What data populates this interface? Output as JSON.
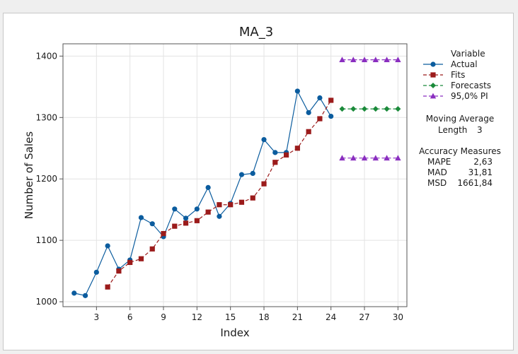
{
  "chart_data": {
    "type": "line",
    "title": "MA_3",
    "xlabel": "Index",
    "ylabel": "Number of Sales",
    "xlim": [
      0,
      30.8
    ],
    "ylim": [
      992,
      1420
    ],
    "xticks": [
      3,
      6,
      9,
      12,
      15,
      18,
      21,
      24,
      27,
      30
    ],
    "yticks": [
      1000,
      1100,
      1200,
      1300,
      1400
    ],
    "grid": true,
    "legend_position": "right",
    "legend_title": "Variable",
    "series": [
      {
        "name": "Actual",
        "color": "#0b5c9e",
        "marker": "circle",
        "line": "solid",
        "x": [
          1,
          2,
          3,
          4,
          5,
          6,
          7,
          8,
          9,
          10,
          11,
          12,
          13,
          14,
          15,
          16,
          17,
          18,
          19,
          20,
          21,
          22,
          23,
          24
        ],
        "y": [
          1014,
          1010,
          1048,
          1091,
          1053,
          1068,
          1137,
          1127,
          1106,
          1151,
          1136,
          1151,
          1186,
          1139,
          1160,
          1207,
          1209,
          1264,
          1243,
          1243,
          1343,
          1308,
          1332,
          1302
        ]
      },
      {
        "name": "Fits",
        "color": "#9b1b1b",
        "marker": "square",
        "line": "dashed",
        "x": [
          4,
          5,
          6,
          7,
          8,
          9,
          10,
          11,
          12,
          13,
          14,
          15,
          16,
          17,
          18,
          19,
          20,
          21,
          22,
          23,
          24
        ],
        "y": [
          1024,
          1050,
          1064,
          1070,
          1086,
          1111,
          1123,
          1128,
          1132,
          1146,
          1158,
          1158,
          1162,
          1169,
          1192,
          1227,
          1239,
          1250,
          1277,
          1298,
          1328
        ]
      },
      {
        "name": "Forecasts",
        "color": "#1a8a3a",
        "marker": "diamond",
        "line": "dashed",
        "x": [
          25,
          26,
          27,
          28,
          29,
          30
        ],
        "y": [
          1314,
          1314,
          1314,
          1314,
          1314,
          1314
        ]
      },
      {
        "name": "95,0% PI",
        "color": "#8a2ec0",
        "marker": "triangle",
        "line": "dashed",
        "x": [
          25,
          26,
          27,
          28,
          29,
          30
        ],
        "y": [
          1394,
          1394,
          1394,
          1394,
          1394,
          1394
        ],
        "lower": [
          1234,
          1234,
          1234,
          1234,
          1234,
          1234
        ]
      }
    ]
  },
  "info": {
    "ma_title": "Moving Average",
    "length_label": "Length",
    "length_value": "3",
    "accuracy_title": "Accuracy Measures",
    "measures": [
      {
        "label": "MAPE",
        "value": "2,63"
      },
      {
        "label": "MAD",
        "value": "31,81"
      },
      {
        "label": "MSD",
        "value": "1661,84"
      }
    ]
  }
}
